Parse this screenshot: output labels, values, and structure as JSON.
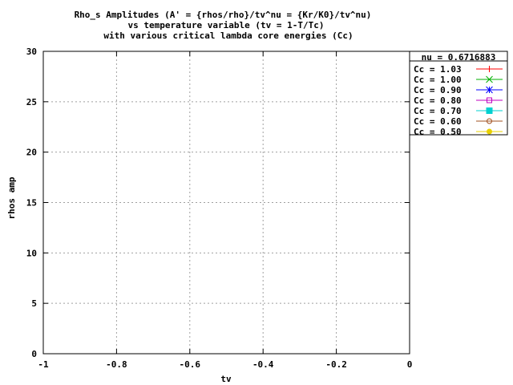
{
  "chart_data": {
    "type": "line",
    "title": [
      "Rho_s Amplitudes (A' = {rhos/rho}/tv^nu = {Kr/K0}/tv^nu)",
      "vs temperature variable (tv = 1-T/Tc)",
      "with various critical lambda core energies (Cc)"
    ],
    "xlabel": "tv",
    "ylabel": "rhos amp",
    "xlim": [
      -1,
      0
    ],
    "ylim": [
      0,
      30
    ],
    "x_ticks": [
      -1,
      -0.8,
      -0.6,
      -0.4,
      -0.2,
      0
    ],
    "x_tick_labels": [
      "-1",
      "-0.8",
      "-0.6",
      "-0.4",
      "-0.2",
      "0"
    ],
    "y_ticks": [
      0,
      5,
      10,
      15,
      20,
      25,
      30
    ],
    "y_tick_labels": [
      "0",
      "5",
      "10",
      "15",
      "20",
      "25",
      "30"
    ],
    "grid": true,
    "legend_position": "outside-right-top",
    "legend_title": "nu = 0.6716883",
    "series": [
      {
        "name": "Cc = 1.03",
        "color": "#ff0000",
        "marker": "plus",
        "x": [],
        "y": []
      },
      {
        "name": "Cc = 1.00",
        "color": "#00b000",
        "marker": "x",
        "x": [],
        "y": []
      },
      {
        "name": "Cc = 0.90",
        "color": "#0000ff",
        "marker": "star",
        "x": [],
        "y": []
      },
      {
        "name": "Cc = 0.80",
        "color": "#c000c0",
        "marker": "square-open",
        "x": [],
        "y": []
      },
      {
        "name": "Cc = 0.70",
        "color": "#00d0d0",
        "marker": "square-filled",
        "x": [],
        "y": []
      },
      {
        "name": "Cc = 0.60",
        "color": "#a05020",
        "marker": "circle-open",
        "x": [],
        "y": []
      },
      {
        "name": "Cc = 0.50",
        "color": "#e8d000",
        "marker": "circle-filled",
        "x": [],
        "y": []
      }
    ]
  }
}
